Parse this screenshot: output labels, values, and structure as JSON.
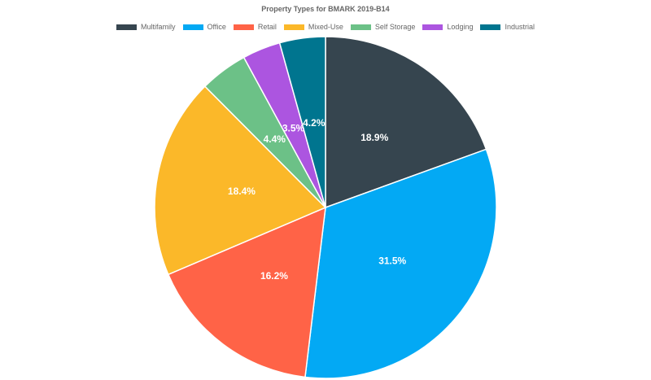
{
  "chart_data": {
    "type": "pie",
    "title": "Property Types for BMARK 2019-B14",
    "legend_position": "top",
    "labels": [
      "Multifamily",
      "Office",
      "Retail",
      "Mixed-Use",
      "Self Storage",
      "Lodging",
      "Industrial"
    ],
    "values": [
      18.9,
      31.5,
      16.2,
      18.4,
      4.4,
      3.5,
      4.2
    ],
    "data_labels": [
      "18.9%",
      "31.5%",
      "16.2%",
      "18.4%",
      "4.4%",
      "3.5%",
      "4.2%"
    ],
    "colors": [
      "#36454f",
      "#03a9f4",
      "#ff6347",
      "#fbb829",
      "#6cc187",
      "#ac55e0",
      "#00758f"
    ]
  }
}
